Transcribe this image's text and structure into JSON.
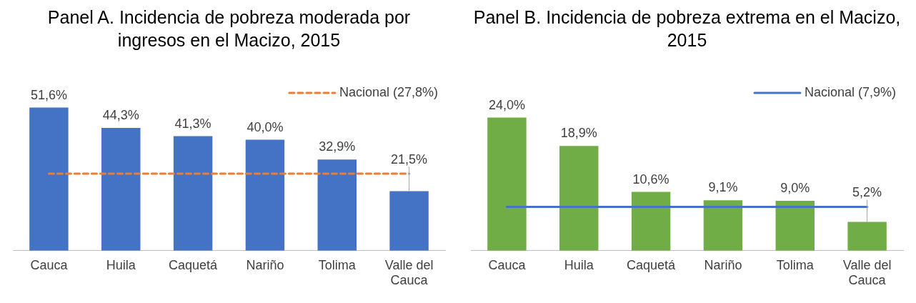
{
  "chart_data": [
    {
      "type": "bar",
      "title": "Panel A. Incidencia de pobreza moderada por ingresos en el Macizo, 2015",
      "categories": [
        "Cauca",
        "Huila",
        "Caquetá",
        "Nariño",
        "Tolima",
        "Valle del Cauca"
      ],
      "values": [
        51.6,
        44.3,
        41.3,
        40.0,
        32.9,
        21.5
      ],
      "color": "#4472c4",
      "value_labels": [
        "51,6%",
        "44,3%",
        "41,3%",
        "40,0%",
        "32,9%",
        "21,5%"
      ],
      "ref_lines": [
        {
          "axis": "y",
          "value": 27.8,
          "label": "Nacional (27,8%)",
          "color": "#ed7d31",
          "line_style": "dashed"
        }
      ]
    },
    {
      "type": "bar",
      "title": "Panel B. Incidencia de pobreza extrema en el Macizo, 2015",
      "categories": [
        "Cauca",
        "Huila",
        "Caquetá",
        "Nariño",
        "Tolima",
        "Valle del Cauca"
      ],
      "values": [
        24.0,
        18.9,
        10.6,
        9.1,
        9.0,
        5.2
      ],
      "color": "#70ad47",
      "value_labels": [
        "24,0%",
        "18,9%",
        "10,6%",
        "9,1%",
        "9,0%",
        "5,2%"
      ],
      "ref_lines": [
        {
          "axis": "y",
          "value": 7.9,
          "label": "Nacional (7,9%)",
          "color": "#4472c4",
          "line_style": "solid"
        }
      ]
    }
  ]
}
